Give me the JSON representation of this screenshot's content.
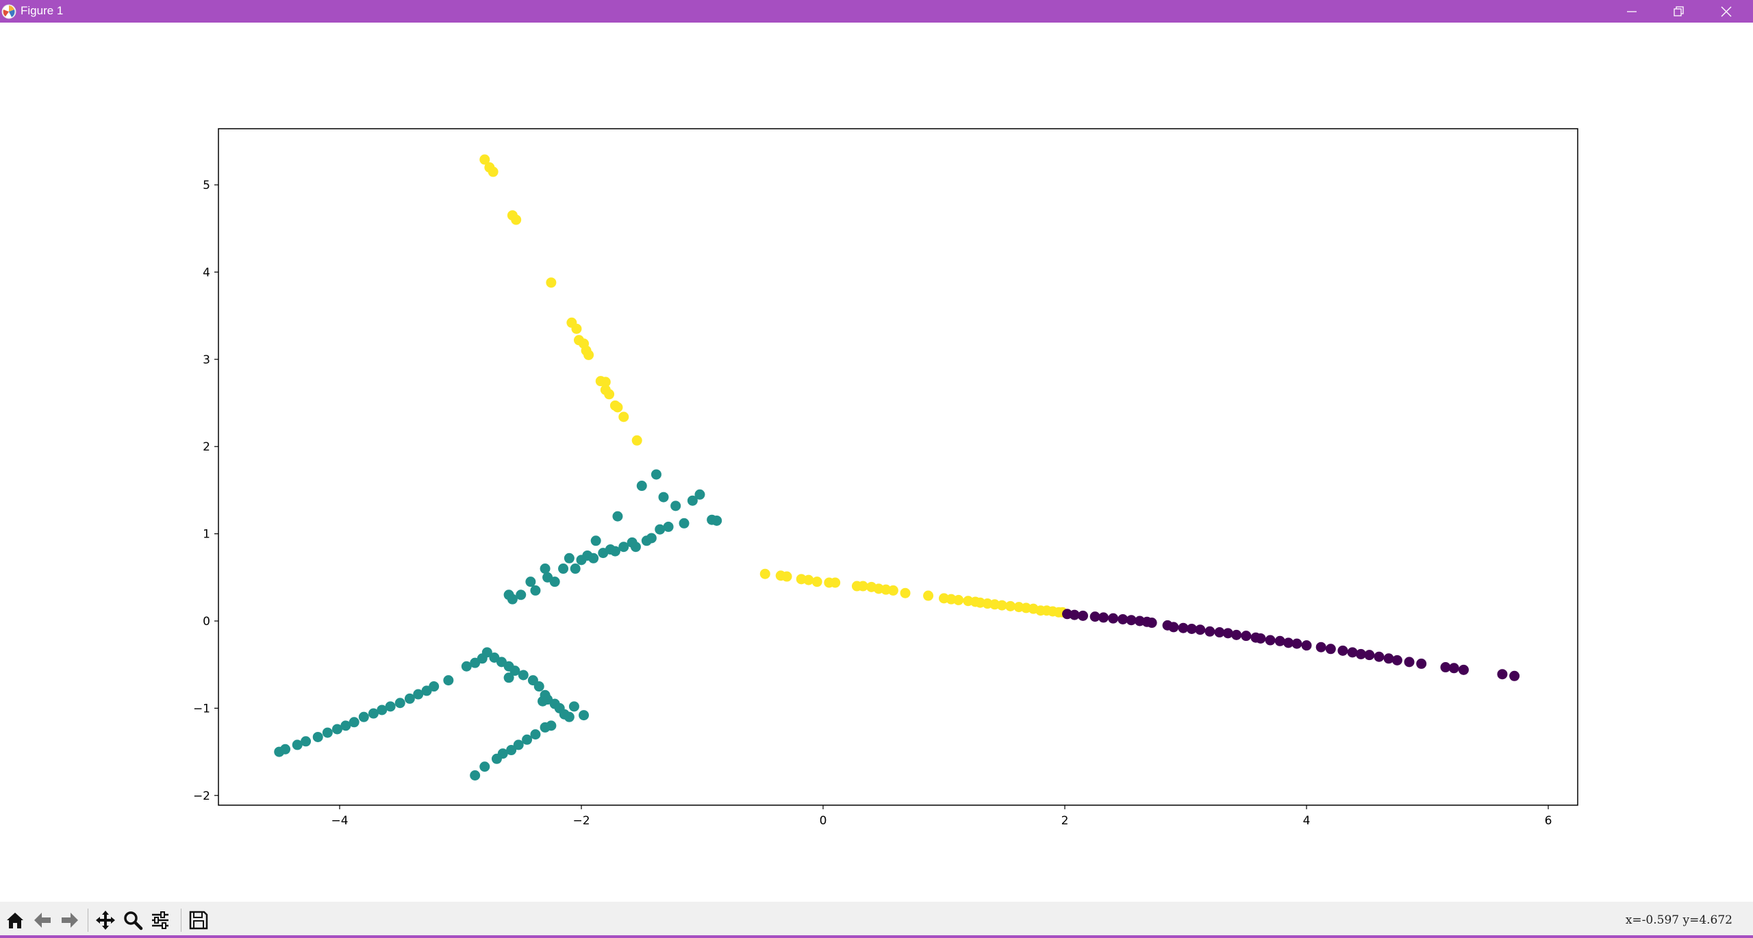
{
  "window": {
    "title": "Figure 1",
    "accent_color": "#a64fc1",
    "controls": [
      "minimize-icon",
      "restore-icon",
      "close-icon"
    ]
  },
  "toolbar": {
    "buttons": [
      "home-icon",
      "back-icon",
      "forward-icon",
      "pan-icon",
      "zoom-icon",
      "configure-subplots-icon",
      "save-icon"
    ]
  },
  "status": {
    "coordinates": "x=-0.597  y=4.672"
  },
  "chart_data": {
    "type": "scatter",
    "title": "",
    "xlabel": "",
    "ylabel": "",
    "xlim": [
      -5.0,
      6.2
    ],
    "ylim": [
      -2.1,
      5.6
    ],
    "xticks": [
      "−4",
      "−2",
      "0",
      "2",
      "4",
      "6"
    ],
    "yticks": [
      "−2",
      "−1",
      "0",
      "1",
      "2",
      "3",
      "4",
      "5"
    ],
    "grid": false,
    "legend": "none",
    "series": [
      {
        "color": "#fde725",
        "points": [
          [
            -2.8,
            5.29
          ],
          [
            -2.76,
            5.2
          ],
          [
            -2.73,
            5.15
          ],
          [
            -2.57,
            4.65
          ],
          [
            -2.54,
            4.6
          ],
          [
            -2.25,
            3.88
          ],
          [
            -2.08,
            3.42
          ],
          [
            -2.04,
            3.35
          ],
          [
            -2.02,
            3.22
          ],
          [
            -1.98,
            3.18
          ],
          [
            -1.96,
            3.1
          ],
          [
            -1.94,
            3.05
          ],
          [
            -1.84,
            2.75
          ],
          [
            -1.8,
            2.74
          ],
          [
            -1.8,
            2.65
          ],
          [
            -1.77,
            2.6
          ],
          [
            -1.72,
            2.47
          ],
          [
            -1.7,
            2.45
          ],
          [
            -1.65,
            2.34
          ],
          [
            -1.54,
            2.07
          ],
          [
            -0.48,
            0.54
          ],
          [
            -0.35,
            0.52
          ],
          [
            -0.3,
            0.51
          ],
          [
            -0.18,
            0.48
          ],
          [
            -0.12,
            0.47
          ],
          [
            -0.05,
            0.45
          ],
          [
            0.05,
            0.44
          ],
          [
            0.1,
            0.44
          ],
          [
            0.28,
            0.4
          ],
          [
            0.33,
            0.4
          ],
          [
            0.4,
            0.39
          ],
          [
            0.46,
            0.37
          ],
          [
            0.52,
            0.36
          ],
          [
            0.58,
            0.35
          ],
          [
            0.68,
            0.32
          ],
          [
            0.87,
            0.29
          ],
          [
            1.0,
            0.26
          ],
          [
            1.06,
            0.25
          ],
          [
            1.12,
            0.24
          ],
          [
            1.2,
            0.23
          ],
          [
            1.26,
            0.22
          ],
          [
            1.3,
            0.21
          ],
          [
            1.36,
            0.2
          ],
          [
            1.42,
            0.19
          ],
          [
            1.48,
            0.18
          ],
          [
            1.55,
            0.17
          ],
          [
            1.62,
            0.16
          ],
          [
            1.68,
            0.15
          ],
          [
            1.74,
            0.14
          ],
          [
            1.8,
            0.12
          ],
          [
            1.85,
            0.12
          ],
          [
            1.9,
            0.11
          ],
          [
            1.95,
            0.1
          ],
          [
            1.98,
            0.1
          ]
        ]
      },
      {
        "color": "#21918c",
        "points": [
          [
            -2.6,
            0.3
          ],
          [
            -2.57,
            0.25
          ],
          [
            -2.5,
            0.3
          ],
          [
            -2.42,
            0.45
          ],
          [
            -2.38,
            0.35
          ],
          [
            -2.3,
            0.6
          ],
          [
            -2.28,
            0.5
          ],
          [
            -2.22,
            0.45
          ],
          [
            -2.15,
            0.6
          ],
          [
            -2.1,
            0.72
          ],
          [
            -2.05,
            0.6
          ],
          [
            -2.0,
            0.7
          ],
          [
            -1.95,
            0.75
          ],
          [
            -1.9,
            0.72
          ],
          [
            -1.88,
            0.92
          ],
          [
            -1.82,
            0.78
          ],
          [
            -1.76,
            0.82
          ],
          [
            -1.72,
            0.8
          ],
          [
            -1.7,
            1.2
          ],
          [
            -1.65,
            0.85
          ],
          [
            -1.58,
            0.9
          ],
          [
            -1.55,
            0.85
          ],
          [
            -1.5,
            1.55
          ],
          [
            -1.46,
            0.92
          ],
          [
            -1.42,
            0.95
          ],
          [
            -1.38,
            1.68
          ],
          [
            -1.35,
            1.05
          ],
          [
            -1.32,
            1.42
          ],
          [
            -1.28,
            1.08
          ],
          [
            -1.22,
            1.32
          ],
          [
            -1.15,
            1.12
          ],
          [
            -1.08,
            1.38
          ],
          [
            -1.02,
            1.45
          ],
          [
            -0.92,
            1.16
          ],
          [
            -0.88,
            1.15
          ],
          [
            -4.5,
            -1.5
          ],
          [
            -4.45,
            -1.47
          ],
          [
            -4.35,
            -1.42
          ],
          [
            -4.28,
            -1.38
          ],
          [
            -4.18,
            -1.33
          ],
          [
            -4.1,
            -1.28
          ],
          [
            -4.02,
            -1.24
          ],
          [
            -3.95,
            -1.2
          ],
          [
            -3.88,
            -1.16
          ],
          [
            -3.8,
            -1.1
          ],
          [
            -3.72,
            -1.06
          ],
          [
            -3.65,
            -1.02
          ],
          [
            -3.58,
            -0.98
          ],
          [
            -3.5,
            -0.94
          ],
          [
            -3.42,
            -0.89
          ],
          [
            -3.35,
            -0.84
          ],
          [
            -3.28,
            -0.8
          ],
          [
            -3.22,
            -0.75
          ],
          [
            -3.1,
            -0.68
          ],
          [
            -2.95,
            -0.52
          ],
          [
            -2.88,
            -0.48
          ],
          [
            -2.82,
            -0.43
          ],
          [
            -2.78,
            -0.36
          ],
          [
            -2.72,
            -0.42
          ],
          [
            -2.66,
            -0.47
          ],
          [
            -2.6,
            -0.52
          ],
          [
            -2.55,
            -0.57
          ],
          [
            -2.48,
            -0.62
          ],
          [
            -2.4,
            -0.68
          ],
          [
            -2.35,
            -0.75
          ],
          [
            -2.3,
            -0.85
          ],
          [
            -2.28,
            -0.9
          ],
          [
            -2.22,
            -0.95
          ],
          [
            -2.18,
            -1.0
          ],
          [
            -2.14,
            -1.07
          ],
          [
            -2.1,
            -1.1
          ],
          [
            -2.06,
            -0.98
          ],
          [
            -1.98,
            -1.08
          ],
          [
            -2.6,
            -0.65
          ],
          [
            -2.32,
            -0.92
          ],
          [
            -2.25,
            -1.2
          ],
          [
            -2.3,
            -1.22
          ],
          [
            -2.38,
            -1.3
          ],
          [
            -2.45,
            -1.36
          ],
          [
            -2.52,
            -1.42
          ],
          [
            -2.58,
            -1.48
          ],
          [
            -2.65,
            -1.52
          ],
          [
            -2.7,
            -1.58
          ],
          [
            -2.8,
            -1.67
          ],
          [
            -2.88,
            -1.77
          ]
        ]
      },
      {
        "color": "#440154",
        "points": [
          [
            2.02,
            0.08
          ],
          [
            2.08,
            0.07
          ],
          [
            2.15,
            0.06
          ],
          [
            2.25,
            0.05
          ],
          [
            2.32,
            0.04
          ],
          [
            2.4,
            0.03
          ],
          [
            2.48,
            0.02
          ],
          [
            2.55,
            0.01
          ],
          [
            2.62,
            0.0
          ],
          [
            2.68,
            -0.01
          ],
          [
            2.72,
            -0.02
          ],
          [
            2.85,
            -0.05
          ],
          [
            2.9,
            -0.07
          ],
          [
            2.98,
            -0.08
          ],
          [
            3.05,
            -0.09
          ],
          [
            3.12,
            -0.1
          ],
          [
            3.2,
            -0.12
          ],
          [
            3.28,
            -0.13
          ],
          [
            3.35,
            -0.14
          ],
          [
            3.42,
            -0.16
          ],
          [
            3.5,
            -0.17
          ],
          [
            3.58,
            -0.19
          ],
          [
            3.62,
            -0.2
          ],
          [
            3.7,
            -0.22
          ],
          [
            3.78,
            -0.23
          ],
          [
            3.85,
            -0.25
          ],
          [
            3.92,
            -0.26
          ],
          [
            4.0,
            -0.28
          ],
          [
            4.12,
            -0.3
          ],
          [
            4.2,
            -0.32
          ],
          [
            4.3,
            -0.34
          ],
          [
            4.38,
            -0.36
          ],
          [
            4.45,
            -0.38
          ],
          [
            4.52,
            -0.39
          ],
          [
            4.6,
            -0.41
          ],
          [
            4.68,
            -0.43
          ],
          [
            4.75,
            -0.45
          ],
          [
            4.85,
            -0.47
          ],
          [
            4.95,
            -0.49
          ],
          [
            5.15,
            -0.53
          ],
          [
            5.22,
            -0.54
          ],
          [
            5.3,
            -0.56
          ],
          [
            5.62,
            -0.61
          ],
          [
            5.72,
            -0.63
          ]
        ]
      }
    ]
  }
}
